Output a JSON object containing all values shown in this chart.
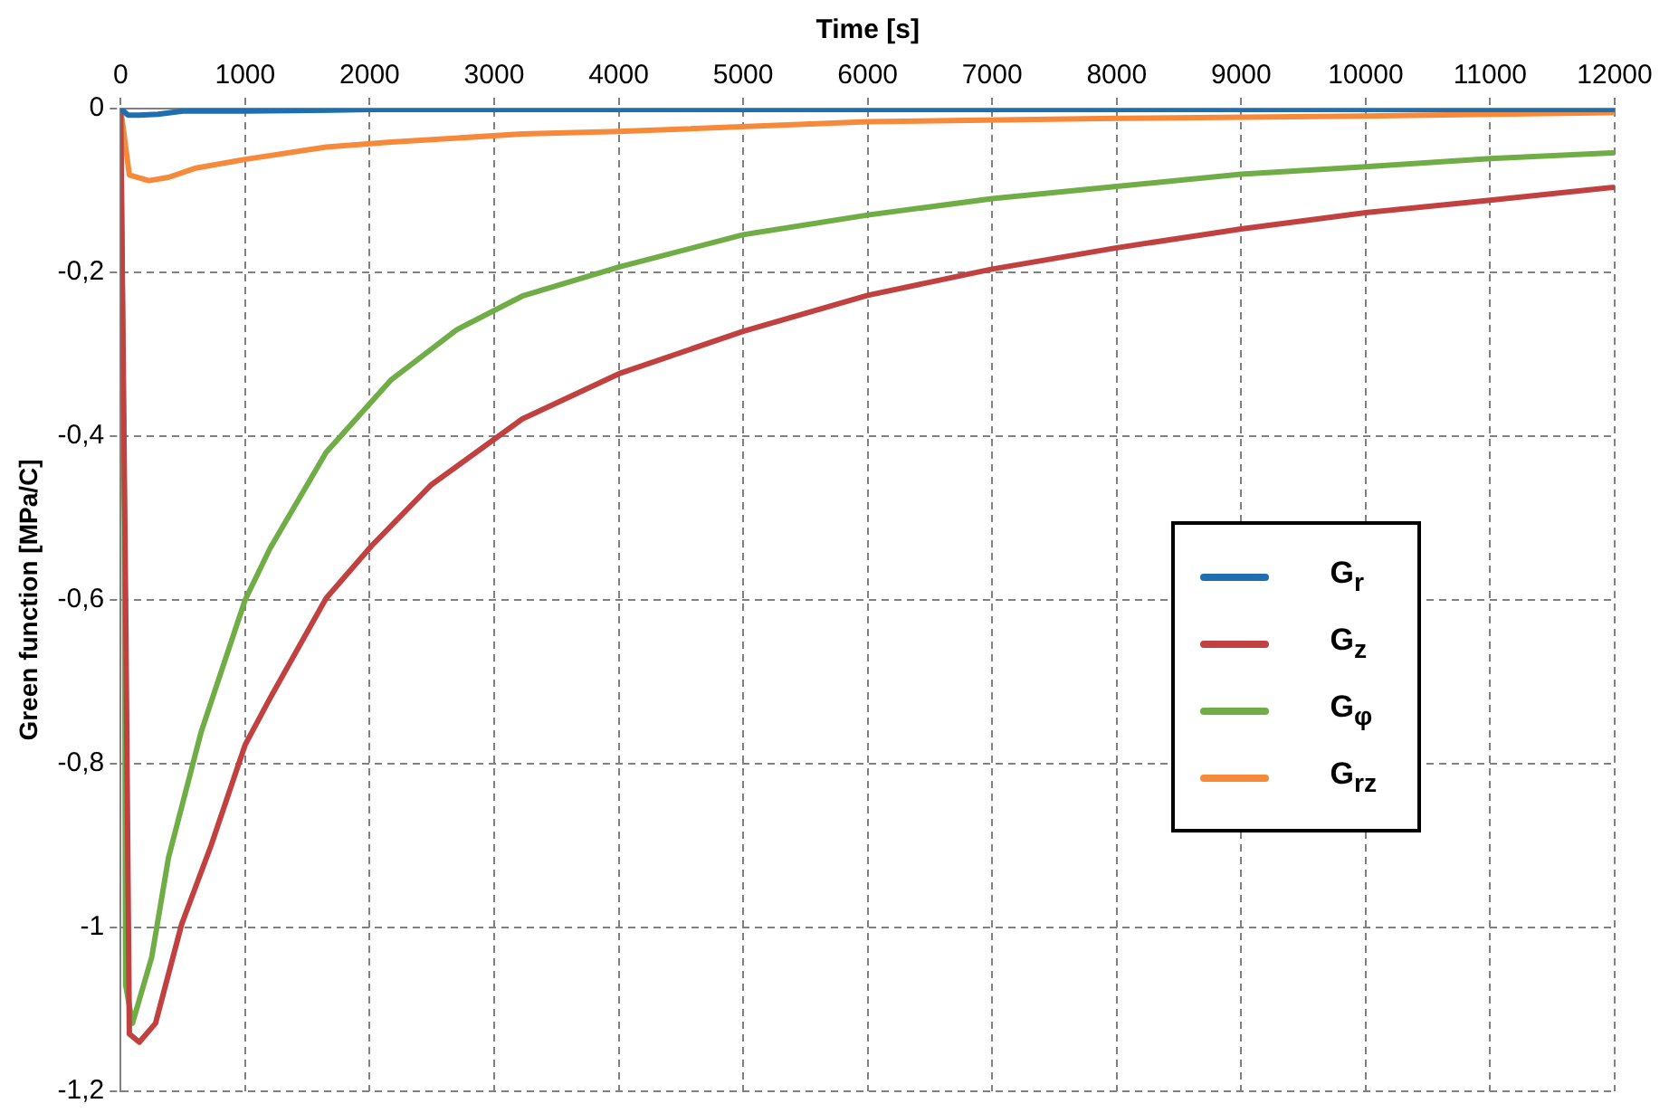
{
  "chart_data": {
    "type": "line",
    "xlabel": "Time [s]",
    "ylabel": "Green function [MPa/C]",
    "xlim": [
      0,
      12000
    ],
    "xticks": [
      0,
      1000,
      2000,
      3000,
      4000,
      5000,
      6000,
      7000,
      8000,
      9000,
      10000,
      11000,
      12000
    ],
    "ylim": [
      -1.2,
      0
    ],
    "yticks": [
      {
        "value": -1.2,
        "label": "-1,2"
      },
      -1,
      {
        "value": -0.8,
        "label": "-0,8"
      },
      {
        "value": -0.6,
        "label": "-0,6"
      },
      {
        "value": -0.4,
        "label": "-0,4"
      },
      {
        "value": -0.2,
        "label": "-0,2"
      },
      0
    ],
    "grid": true,
    "legend": "right",
    "marker": "none",
    "line_style": "solid",
    "series": [
      {
        "name": "G$_{r}$",
        "color": "#1f6fb0",
        "x": [
          0,
          60,
          150,
          300,
          500,
          1000,
          1700,
          2000,
          4000,
          8000,
          12000
        ],
        "values": [
          0,
          -0.008,
          -0.008,
          -0.007,
          -0.003,
          -0.003,
          -0.002,
          -0.001,
          -0.001,
          -0.001,
          -0.001
        ]
      },
      {
        "name": "G$_{z}$",
        "color": "#c0413f",
        "x": [
          0,
          40,
          70,
          150,
          280,
          490,
          726,
          1000,
          1200,
          1650,
          2015,
          2490,
          3226,
          4015,
          5000,
          6000,
          7000,
          8000,
          9000,
          10000,
          11000,
          12000
        ],
        "values": [
          0,
          -0.6,
          -1.13,
          -1.14,
          -1.117,
          -0.996,
          -0.9,
          -0.777,
          -0.72,
          -0.598,
          -0.534,
          -0.46,
          -0.379,
          -0.323,
          -0.272,
          -0.228,
          -0.196,
          -0.17,
          -0.147,
          -0.127,
          -0.112,
          -0.096
        ]
      },
      {
        "name": "G$_{φ}$",
        "color": "#70ad47",
        "x": [
          0,
          30,
          40,
          95,
          250,
          384,
          647,
          1000,
          1200,
          1650,
          2174,
          2700,
          3226,
          4015,
          5000,
          6000,
          7000,
          8000,
          9000,
          10000,
          11000,
          12000
        ],
        "values": [
          0,
          -0.5,
          -1.07,
          -1.117,
          -1.036,
          -0.915,
          -0.761,
          -0.6,
          -0.537,
          -0.42,
          -0.331,
          -0.27,
          -0.229,
          -0.193,
          -0.154,
          -0.13,
          -0.11,
          -0.095,
          -0.08,
          -0.071,
          -0.061,
          -0.054
        ]
      },
      {
        "name": "G$_{rz}$",
        "color": "#f7893b",
        "x": [
          0,
          70,
          226,
          384,
          595,
          1000,
          1650,
          2174,
          3226,
          4000,
          6000,
          8000,
          10000,
          12000
        ],
        "values": [
          0,
          -0.081,
          -0.088,
          -0.084,
          -0.073,
          -0.062,
          -0.047,
          -0.041,
          -0.031,
          -0.028,
          -0.016,
          -0.012,
          -0.009,
          -0.005
        ]
      }
    ]
  }
}
